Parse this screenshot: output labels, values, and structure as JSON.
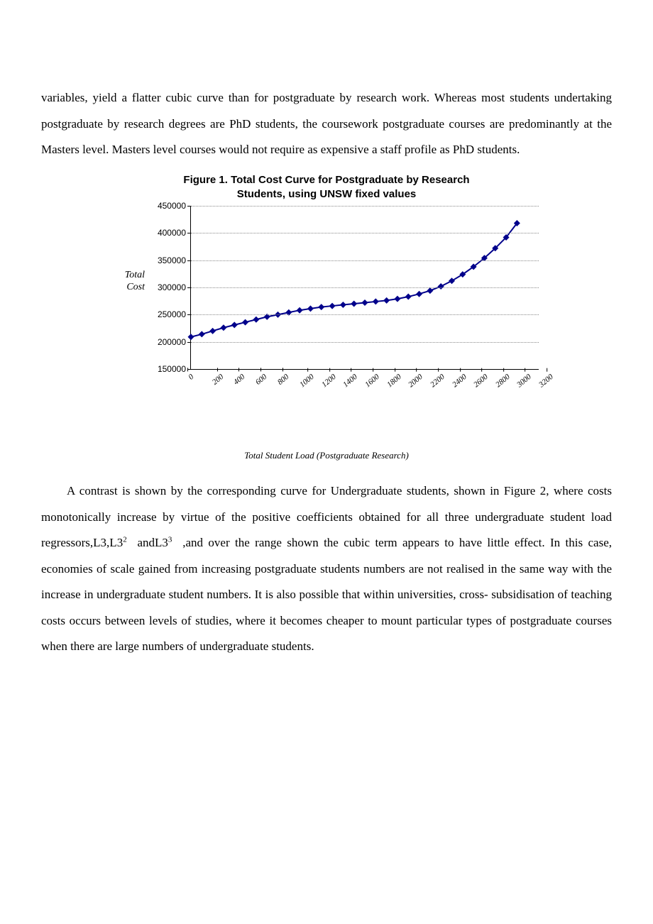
{
  "paragraph1": "variables, yield a flatter cubic curve than for postgraduate by research work. Whereas most students undertaking postgraduate by research degrees are PhD students, the coursework postgraduate courses are predominantly at the Masters level. Masters level courses would not require as expensive a staff profile as PhD students.",
  "figure": {
    "title_line1": "Figure 1. Total Cost Curve for Postgraduate by Research",
    "title_line2": "Students, using UNSW fixed values",
    "y_label_line1": "Total",
    "y_label_line2": "Cost",
    "x_label": "Total Student Load (Postgraduate Research)",
    "y_ticks": [
      "150000",
      "200000",
      "250000",
      "300000",
      "350000",
      "400000",
      "450000"
    ],
    "y_min": 150000,
    "y_max": 450000,
    "x_ticks": [
      "0",
      "200",
      "400",
      "600",
      "800",
      "1000",
      "1200",
      "1400",
      "1600",
      "1800",
      "2000",
      "2200",
      "2400",
      "2600",
      "2800",
      "3000",
      "3200"
    ],
    "x_min": 0,
    "x_max": 3200,
    "grid_color": "#8a8a8a",
    "line_color": "#00008b",
    "marker_color": "#00008b",
    "marker_size": 4.5,
    "line_width": 2,
    "series": [
      {
        "x": 0,
        "y": 209000
      },
      {
        "x": 100,
        "y": 214000
      },
      {
        "x": 200,
        "y": 220000
      },
      {
        "x": 300,
        "y": 226000
      },
      {
        "x": 400,
        "y": 231000
      },
      {
        "x": 500,
        "y": 236000
      },
      {
        "x": 600,
        "y": 241000
      },
      {
        "x": 700,
        "y": 246000
      },
      {
        "x": 800,
        "y": 250000
      },
      {
        "x": 900,
        "y": 254000
      },
      {
        "x": 1000,
        "y": 258000
      },
      {
        "x": 1100,
        "y": 261000
      },
      {
        "x": 1200,
        "y": 264000
      },
      {
        "x": 1300,
        "y": 266000
      },
      {
        "x": 1400,
        "y": 268000
      },
      {
        "x": 1500,
        "y": 270000
      },
      {
        "x": 1600,
        "y": 272000
      },
      {
        "x": 1700,
        "y": 274000
      },
      {
        "x": 1800,
        "y": 276000
      },
      {
        "x": 1900,
        "y": 279000
      },
      {
        "x": 2000,
        "y": 283000
      },
      {
        "x": 2100,
        "y": 288000
      },
      {
        "x": 2200,
        "y": 294000
      },
      {
        "x": 2300,
        "y": 302000
      },
      {
        "x": 2400,
        "y": 312000
      },
      {
        "x": 2500,
        "y": 324000
      },
      {
        "x": 2600,
        "y": 338000
      },
      {
        "x": 2700,
        "y": 354000
      },
      {
        "x": 2800,
        "y": 372000
      },
      {
        "x": 2900,
        "y": 392000
      },
      {
        "x": 3000,
        "y": 418000
      }
    ]
  },
  "paragraph2_pre": "A contrast is shown by the corresponding curve for Undergraduate students, shown in Figure 2, where costs monotonically increase by virtue of the positive coefficients obtained for all three undergraduate student load regressors,L3,L3",
  "p2_sup1": "2",
  "p2_mid": "  andL3",
  "p2_sup2": "3",
  "p2_post": "  ,and over the range shown the cubic term appears to have little effect. In this case, economies of scale gained from increasing postgraduate students numbers are not realised in the same way with the increase in undergraduate student numbers. It is also possible that within universities, cross- subsidisation of teaching costs occurs between levels of studies, where it becomes cheaper to mount particular types of postgraduate courses when there are large numbers of undergraduate students."
}
